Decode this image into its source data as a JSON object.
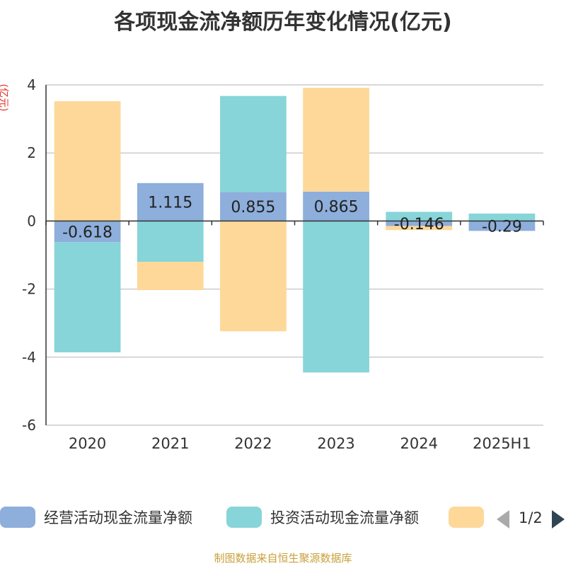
{
  "chart_data": {
    "type": "bar",
    "stacked": true,
    "title": "各项现金流净额历年变化情况(亿元)",
    "ylabel": "(亿元)",
    "categories": [
      "2020",
      "2021",
      "2022",
      "2023",
      "2024",
      "2025H1"
    ],
    "ylim": [
      -6,
      4
    ],
    "yticks": [
      4,
      2,
      0,
      -2,
      -4,
      -6
    ],
    "grid": true,
    "legend_position": "bottom",
    "series": [
      {
        "name": "经营活动现金流量净额",
        "color": "#8eaedb",
        "values": [
          -0.618,
          1.115,
          0.855,
          0.865,
          -0.146,
          -0.29
        ],
        "labels": [
          "-0.618",
          "1.115",
          "0.855",
          "0.865",
          "-0.146",
          "-0.29"
        ]
      },
      {
        "name": "投资活动现金流量净额",
        "color": "#87d5d8",
        "values": [
          -3.24,
          -1.2,
          2.82,
          -4.45,
          0.27,
          0.22
        ]
      },
      {
        "name": "",
        "color": "#fdd898",
        "values": [
          3.52,
          -0.83,
          -3.24,
          3.05,
          -0.12,
          0
        ]
      }
    ]
  },
  "legend": {
    "items": [
      {
        "label": "经营活动现金流量净额",
        "color": "#8eaedb"
      },
      {
        "label": "投资活动现金流量净额",
        "color": "#87d5d8"
      },
      {
        "label": "",
        "color": "#fdd898"
      }
    ],
    "page": "1/2"
  },
  "source": "制图数据来自恒生聚源数据库"
}
